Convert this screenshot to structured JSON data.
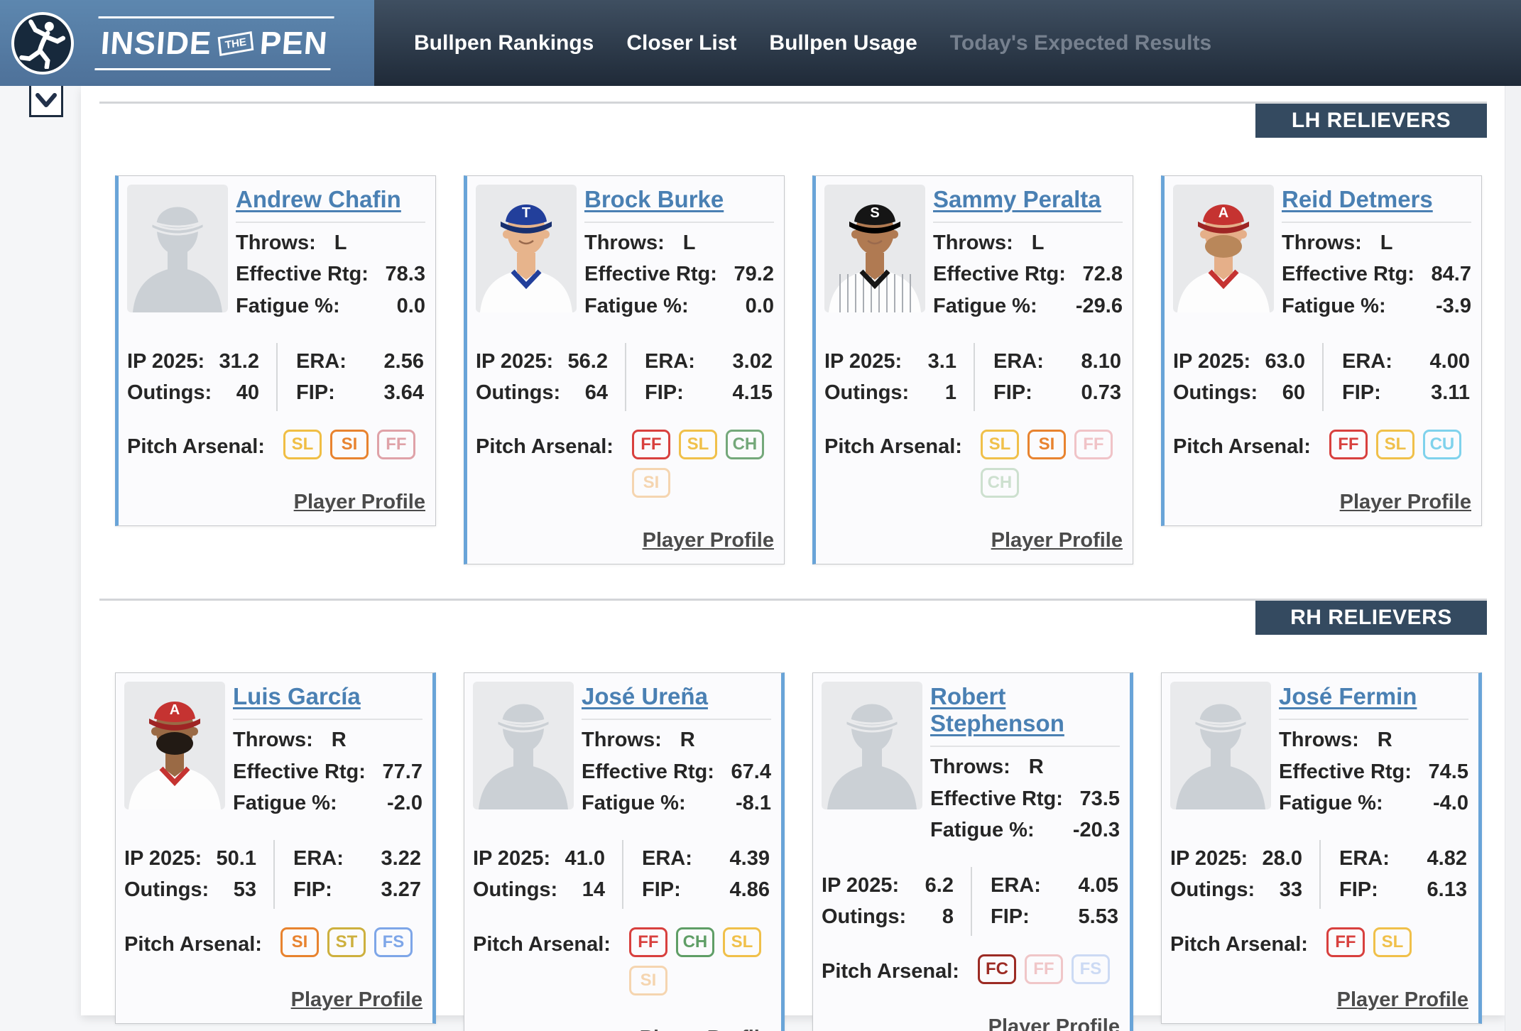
{
  "header": {
    "brand": {
      "word1": "INSIDE",
      "word2": "THE",
      "word3": "PEN"
    },
    "nav": [
      {
        "label": "Bullpen Rankings",
        "enabled": true
      },
      {
        "label": "Closer List",
        "enabled": true
      },
      {
        "label": "Bullpen Usage",
        "enabled": true
      },
      {
        "label": "Today's Expected Results",
        "enabled": false
      }
    ]
  },
  "labels": {
    "throws": "Throws:",
    "effective_rtg": "Effective Rtg:",
    "fatigue_pct": "Fatigue %:",
    "ip_2025": "IP 2025:",
    "outings": "Outings:",
    "era": "ERA:",
    "fip": "FIP:",
    "arsenal": "Pitch Arsenal:",
    "profile": "Player Profile"
  },
  "colors": {
    "accent_blue": "#69a4d8",
    "section_badge_bg": "#344a60",
    "name_link": "#4a80b3",
    "header_left_top": "#5d87af",
    "header_left_bottom": "#4e7199",
    "header_nav_top": "#3f4f61",
    "header_nav_bottom": "#1f2a38"
  },
  "sections": [
    {
      "title": "LH RELIEVERS",
      "players": [
        {
          "name": "Andrew Chafin",
          "throws": "L",
          "effective_rtg": "78.3",
          "fatigue_pct": "0.0",
          "ip_2025": "31.2",
          "outings": "40",
          "era": "2.56",
          "fip": "3.64",
          "pitches": [
            {
              "code": "SL",
              "color": "#f0be44"
            },
            {
              "code": "SI",
              "color": "#e8832f"
            },
            {
              "code": "FF",
              "color": "#dfa2a8"
            }
          ],
          "photo": {
            "type": "placeholder"
          }
        },
        {
          "name": "Brock Burke",
          "throws": "L",
          "effective_rtg": "79.2",
          "fatigue_pct": "0.0",
          "ip_2025": "56.2",
          "outings": "64",
          "era": "3.02",
          "fip": "4.15",
          "pitches": [
            {
              "code": "FF",
              "color": "#d8403e"
            },
            {
              "code": "SL",
              "color": "#f0c04a"
            },
            {
              "code": "CH",
              "color": "#74a87a"
            },
            {
              "code": "SI",
              "color": "#f5d5b0"
            }
          ],
          "photo": {
            "type": "avatar",
            "cap": "#223f9b",
            "brim": "#18306f",
            "logo": "T",
            "logo_color": "#ffffff",
            "skin": "#e7b48c",
            "jersey": "#fdfdfd",
            "trim": "#223f9b",
            "pinstripes": false,
            "beard": null
          }
        },
        {
          "name": "Sammy Peralta",
          "throws": "L",
          "effective_rtg": "72.8",
          "fatigue_pct": "-29.6",
          "ip_2025": "3.1",
          "outings": "1",
          "era": "8.10",
          "fip": "0.73",
          "pitches": [
            {
              "code": "SL",
              "color": "#f0c04a"
            },
            {
              "code": "SI",
              "color": "#e8832f"
            },
            {
              "code": "FF",
              "color": "#f0c3c7"
            },
            {
              "code": "CH",
              "color": "#cde0cf"
            }
          ],
          "photo": {
            "type": "avatar",
            "cap": "#151515",
            "brim": "#000000",
            "logo": "S",
            "logo_color": "#ffffff",
            "skin": "#b07a52",
            "jersey": "#fdfdfd",
            "trim": "#151515",
            "pinstripes": true,
            "beard": null
          }
        },
        {
          "name": "Reid Detmers",
          "throws": "L",
          "effective_rtg": "84.7",
          "fatigue_pct": "-3.9",
          "ip_2025": "63.0",
          "outings": "60",
          "era": "4.00",
          "fip": "3.11",
          "pitches": [
            {
              "code": "FF",
              "color": "#d8403e"
            },
            {
              "code": "SL",
              "color": "#f0c04a"
            },
            {
              "code": "CU",
              "color": "#7fd2ec"
            }
          ],
          "photo": {
            "type": "avatar",
            "cap": "#c53331",
            "brim": "#9e2524",
            "logo": "A",
            "logo_color": "#ffffff",
            "skin": "#e5af89",
            "jersey": "#fdfdfd",
            "trim": "#c53331",
            "pinstripes": false,
            "beard": "#b9875a"
          }
        }
      ]
    },
    {
      "title": "RH RELIEVERS",
      "players": [
        {
          "name": "Luis García",
          "throws": "R",
          "effective_rtg": "77.7",
          "fatigue_pct": "-2.0",
          "ip_2025": "50.1",
          "outings": "53",
          "era": "3.22",
          "fip": "3.27",
          "pitches": [
            {
              "code": "SI",
              "color": "#e8832f"
            },
            {
              "code": "ST",
              "color": "#cdb03e"
            },
            {
              "code": "FS",
              "color": "#7ea6e8"
            }
          ],
          "photo": {
            "type": "avatar",
            "cap": "#c53331",
            "brim": "#9e2524",
            "logo": "A",
            "logo_color": "#ffffff",
            "skin": "#9a6a45",
            "jersey": "#fdfdfd",
            "trim": "#c53331",
            "pinstripes": false,
            "beard": "#221a14"
          }
        },
        {
          "name": "José Ureña",
          "throws": "R",
          "effective_rtg": "67.4",
          "fatigue_pct": "-8.1",
          "ip_2025": "41.0",
          "outings": "14",
          "era": "4.39",
          "fip": "4.86",
          "pitches": [
            {
              "code": "FF",
              "color": "#d8403e"
            },
            {
              "code": "CH",
              "color": "#5f9e66"
            },
            {
              "code": "SL",
              "color": "#f0c04a"
            },
            {
              "code": "SI",
              "color": "#f5d5b0"
            }
          ],
          "photo": {
            "type": "placeholder"
          }
        },
        {
          "name": "Robert Stephenson",
          "throws": "R",
          "effective_rtg": "73.5",
          "fatigue_pct": "-20.3",
          "ip_2025": "6.2",
          "outings": "8",
          "era": "4.05",
          "fip": "5.53",
          "pitches": [
            {
              "code": "FC",
              "color": "#9c2b24"
            },
            {
              "code": "FF",
              "color": "#f0c6c8"
            },
            {
              "code": "FS",
              "color": "#ccdaf4"
            }
          ],
          "photo": {
            "type": "placeholder"
          }
        },
        {
          "name": "José Fermin",
          "throws": "R",
          "effective_rtg": "74.5",
          "fatigue_pct": "-4.0",
          "ip_2025": "28.0",
          "outings": "33",
          "era": "4.82",
          "fip": "6.13",
          "pitches": [
            {
              "code": "FF",
              "color": "#d8403e"
            },
            {
              "code": "SL",
              "color": "#f0c04a"
            }
          ],
          "photo": {
            "type": "placeholder"
          }
        }
      ]
    }
  ]
}
